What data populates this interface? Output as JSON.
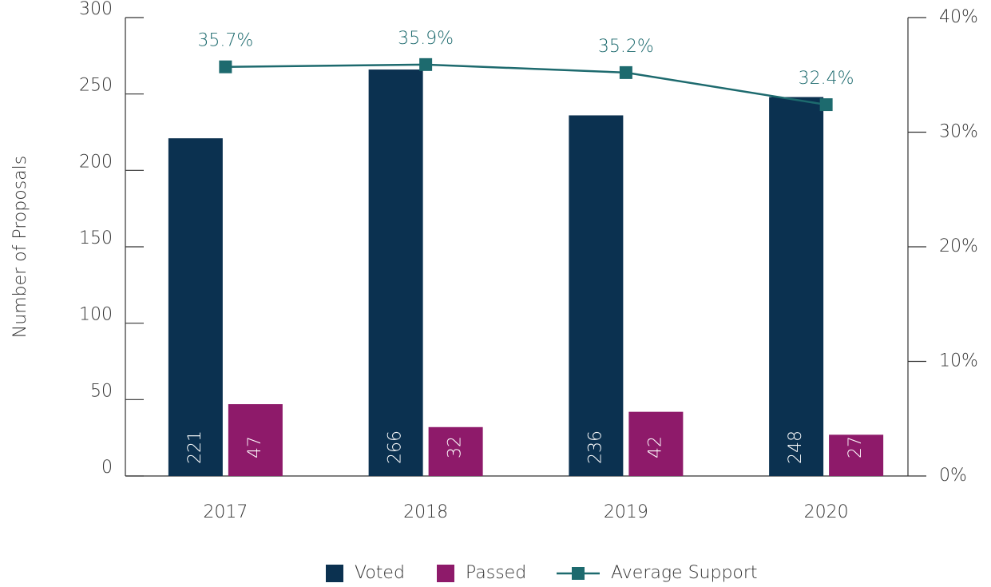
{
  "chart_data": {
    "type": "bar",
    "y_axis_label": "Number of Proposals",
    "categories": [
      "2017",
      "2018",
      "2019",
      "2020"
    ],
    "series": [
      {
        "name": "Voted",
        "color": "#0b3150",
        "values": [
          221,
          266,
          236,
          248
        ]
      },
      {
        "name": "Passed",
        "color": "#8e1a6a",
        "values": [
          47,
          32,
          42,
          27
        ]
      },
      {
        "name": "Average Support",
        "color": "#1d6a6e",
        "type": "line",
        "axis": "y2",
        "values": [
          35.7,
          35.9,
          35.2,
          32.4
        ],
        "value_labels": [
          "35.7%",
          "35.9%",
          "35.2%",
          "32.4%"
        ]
      }
    ],
    "ylim": [
      0,
      300
    ],
    "yticks": [
      0,
      50,
      100,
      150,
      200,
      250,
      300
    ],
    "y2lim": [
      0,
      40
    ],
    "y2ticks": [
      {
        "value": 0,
        "label": "0%"
      },
      {
        "value": 10,
        "label": "10%"
      },
      {
        "value": 20,
        "label": "20%"
      },
      {
        "value": 30,
        "label": "30%"
      },
      {
        "value": 40,
        "label": "40%"
      }
    ],
    "legend": "bottom"
  }
}
